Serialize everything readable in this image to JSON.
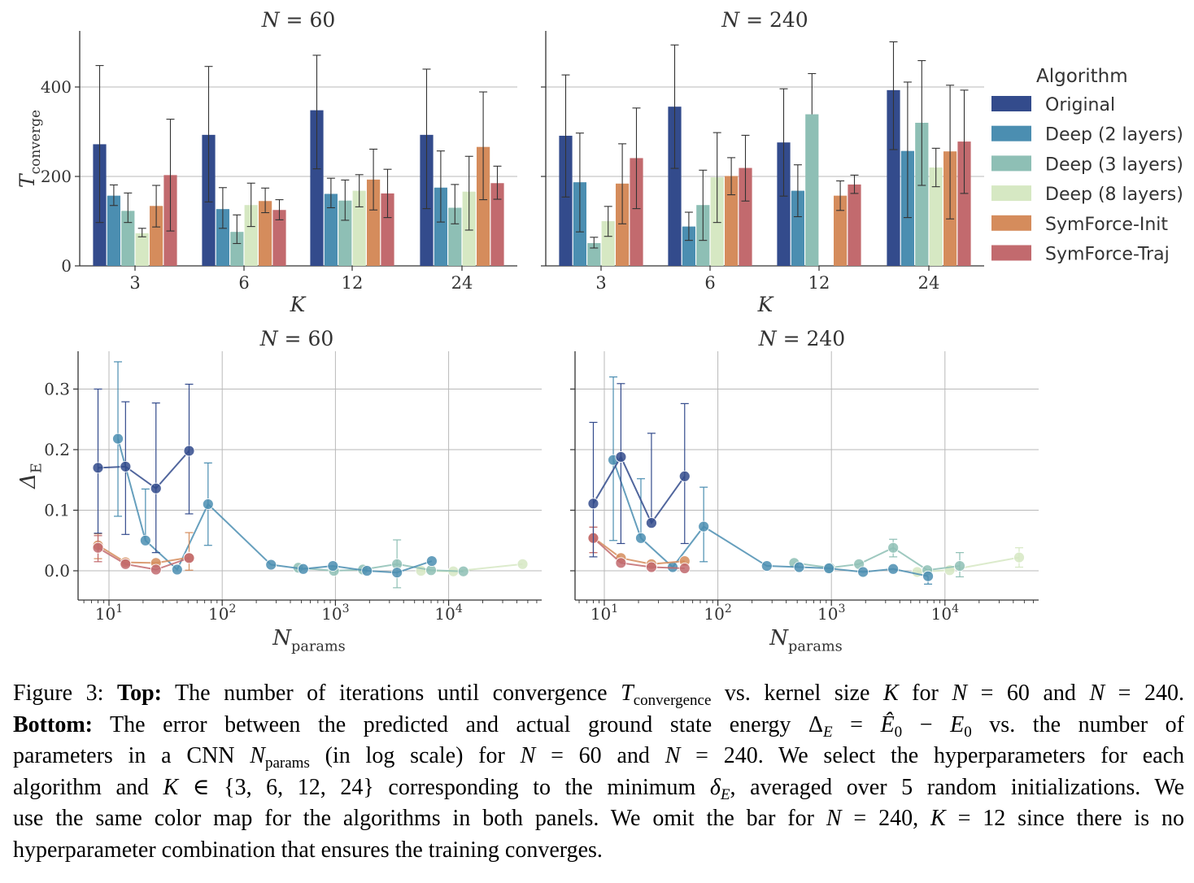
{
  "legend": {
    "title": "Algorithm",
    "items": [
      {
        "label": "Original",
        "color": "#334b8c"
      },
      {
        "label": "Deep (2 layers)",
        "color": "#4b8eb1"
      },
      {
        "label": "Deep (3 layers)",
        "color": "#8ebfb5"
      },
      {
        "label": "Deep (8 layers)",
        "color": "#d6e8c3"
      },
      {
        "label": "SymForce-Init",
        "color": "#d58c5c"
      },
      {
        "label": "SymForce-Traj",
        "color": "#c26a6e"
      }
    ]
  },
  "chart_data": [
    {
      "type": "bar",
      "title": "N = 60",
      "xlabel": "K",
      "ylabel": "T_converge",
      "categories": [
        "3",
        "6",
        "12",
        "24"
      ],
      "ylim": [
        0,
        530
      ],
      "yticks": [
        "0",
        "200",
        "400"
      ],
      "series": [
        {
          "name": "Original",
          "values": [
            272,
            293,
            348,
            293
          ],
          "err_low": [
            97,
            143,
            217,
            128
          ],
          "err_high": [
            448,
            446,
            471,
            440
          ]
        },
        {
          "name": "Deep (2 layers)",
          "values": [
            157,
            127,
            161,
            175
          ],
          "err_low": [
            135,
            84,
            130,
            98
          ],
          "err_high": [
            181,
            175,
            196,
            257
          ]
        },
        {
          "name": "Deep (3 layers)",
          "values": [
            123,
            76,
            146,
            130
          ],
          "err_low": [
            97,
            50,
            102,
            94
          ],
          "err_high": [
            163,
            114,
            192,
            182
          ]
        },
        {
          "name": "Deep (8 layers)",
          "values": [
            73,
            136,
            168,
            166
          ],
          "err_low": [
            65,
            88,
            132,
            80
          ],
          "err_high": [
            84,
            185,
            204,
            245
          ]
        },
        {
          "name": "SymForce-Init",
          "values": [
            134,
            145,
            193,
            266
          ],
          "err_low": [
            87,
            119,
            125,
            148
          ],
          "err_high": [
            180,
            174,
            261,
            389
          ]
        },
        {
          "name": "SymForce-Traj",
          "values": [
            203,
            125,
            162,
            185
          ],
          "err_low": [
            78,
            103,
            108,
            149
          ],
          "err_high": [
            328,
            148,
            216,
            223
          ]
        }
      ]
    },
    {
      "type": "bar",
      "title": "N = 240",
      "xlabel": "K",
      "ylabel": "",
      "categories": [
        "3",
        "6",
        "12",
        "24"
      ],
      "ylim": [
        0,
        530
      ],
      "series": [
        {
          "name": "Original",
          "values": [
            291,
            356,
            276,
            393
          ],
          "err_low": [
            154,
            218,
            156,
            260
          ],
          "err_high": [
            427,
            494,
            396,
            501
          ]
        },
        {
          "name": "Deep (2 layers)",
          "values": [
            187,
            88,
            168,
            257
          ],
          "err_low": [
            76,
            57,
            110,
            108
          ],
          "err_high": [
            297,
            120,
            226,
            411
          ]
        },
        {
          "name": "Deep (3 layers)",
          "values": [
            51,
            136,
            339,
            320
          ],
          "err_low": [
            40,
            57,
            null,
            180
          ],
          "err_high": [
            64,
            214,
            430,
            459
          ]
        },
        {
          "name": "Deep (8 layers)",
          "values": [
            100,
            198,
            null,
            220
          ],
          "err_low": [
            66,
            97,
            null,
            177
          ],
          "err_high": [
            133,
            298,
            null,
            263
          ]
        },
        {
          "name": "SymForce-Init",
          "values": [
            184,
            201,
            157,
            256
          ],
          "err_low": [
            94,
            159,
            124,
            105
          ],
          "err_high": [
            273,
            242,
            190,
            404
          ]
        },
        {
          "name": "SymForce-Traj",
          "values": [
            241,
            219,
            182,
            278
          ],
          "err_low": [
            128,
            145,
            162,
            162
          ],
          "err_high": [
            353,
            292,
            203,
            393
          ]
        }
      ]
    },
    {
      "type": "line",
      "title": "N = 60",
      "xlabel": "N_params",
      "ylabel": "Δ_E",
      "xscale": "log",
      "xlim": [
        5,
        65000
      ],
      "ylim": [
        -0.047,
        0.365
      ],
      "xticks": [
        "10^1",
        "10^2",
        "10^3",
        "10^4"
      ],
      "yticks": [
        "0.0",
        "0.1",
        "0.2",
        "0.3"
      ],
      "series": [
        {
          "name": "Original",
          "x": [
            8,
            14,
            26,
            51
          ],
          "y": [
            0.17,
            0.172,
            0.136,
            0.198
          ],
          "err_low": [
            0.062,
            0.06,
            0.03,
            0.094
          ],
          "err_high": [
            0.3,
            0.279,
            0.277,
            0.308
          ]
        },
        {
          "name": "Deep (2 layers)",
          "x": [
            12,
            21,
            40,
            75,
            270,
            520,
            950,
            1900,
            3500,
            7100
          ],
          "y": [
            0.218,
            0.05,
            0.002,
            0.11,
            0.01,
            0.003,
            0.008,
            0.0,
            -0.003,
            0.016
          ],
          "err_low": [
            0.09,
            null,
            null,
            0.042,
            null,
            null,
            null,
            null,
            null,
            null
          ],
          "err_high": [
            0.345,
            0.135,
            null,
            0.178,
            null,
            null,
            null,
            null,
            null,
            null
          ]
        },
        {
          "name": "Deep (3 layers)",
          "x": [
            470,
            970,
            1750,
            3500,
            7000,
            13500
          ],
          "y": [
            0.005,
            0.0,
            0.002,
            0.011,
            0.001,
            -0.001
          ],
          "err_low": [
            null,
            null,
            null,
            -0.028,
            null,
            null
          ],
          "err_high": [
            null,
            null,
            null,
            0.051,
            null,
            null
          ]
        },
        {
          "name": "Deep (8 layers)",
          "x": [
            5700,
            11000,
            45000
          ],
          "y": [
            0.0,
            -0.001,
            0.011
          ],
          "err_low": [
            null,
            null,
            null
          ],
          "err_high": [
            null,
            null,
            null
          ]
        },
        {
          "name": "SymForce-Init",
          "x": [
            8,
            14,
            26,
            51
          ],
          "y": [
            0.042,
            0.014,
            0.013,
            0.022
          ],
          "err_low": [
            0.02,
            null,
            null,
            0.001
          ],
          "err_high": [
            0.061,
            null,
            null,
            0.063
          ]
        },
        {
          "name": "SymForce-Traj",
          "x": [
            8,
            14,
            26,
            51
          ],
          "y": [
            0.038,
            0.011,
            0.002,
            0.021
          ],
          "err_low": [
            0.015,
            null,
            null,
            null
          ],
          "err_high": [
            0.058,
            null,
            null,
            null
          ]
        }
      ]
    },
    {
      "type": "line",
      "title": "N = 240",
      "xlabel": "N_params",
      "ylabel": "",
      "xscale": "log",
      "xlim": [
        5,
        65000
      ],
      "ylim": [
        -0.047,
        0.365
      ],
      "xticks": [
        "10^1",
        "10^2",
        "10^3",
        "10^4"
      ],
      "series": [
        {
          "name": "Original",
          "x": [
            8,
            14,
            26,
            51
          ],
          "y": [
            0.111,
            0.188,
            0.079,
            0.156
          ],
          "err_low": [
            0.023,
            0.045,
            null,
            0.045
          ],
          "err_high": [
            0.245,
            0.309,
            0.227,
            0.276
          ]
        },
        {
          "name": "Deep (2 layers)",
          "x": [
            12,
            21,
            40,
            75,
            270,
            520,
            950,
            1900,
            3500,
            7100
          ],
          "y": [
            0.183,
            0.054,
            0.006,
            0.073,
            0.008,
            0.006,
            0.004,
            -0.002,
            0.003,
            -0.009
          ],
          "err_low": [
            0.05,
            null,
            null,
            0.015,
            null,
            null,
            null,
            null,
            null,
            -0.022
          ],
          "err_high": [
            0.32,
            0.152,
            null,
            0.138,
            null,
            null,
            null,
            null,
            null,
            null
          ]
        },
        {
          "name": "Deep (3 layers)",
          "x": [
            470,
            970,
            1750,
            3500,
            7000,
            13500
          ],
          "y": [
            0.013,
            0.005,
            0.011,
            0.038,
            0.001,
            0.008
          ],
          "err_low": [
            null,
            null,
            null,
            0.023,
            null,
            -0.01
          ],
          "err_high": [
            null,
            null,
            null,
            0.052,
            null,
            0.03
          ]
        },
        {
          "name": "Deep (8 layers)",
          "x": [
            5700,
            11000,
            45000
          ],
          "y": [
            -0.002,
            0.001,
            0.022
          ],
          "err_low": [
            null,
            null,
            0.006
          ],
          "err_high": [
            null,
            null,
            0.038
          ]
        },
        {
          "name": "SymForce-Init",
          "x": [
            8,
            14,
            26,
            51
          ],
          "y": [
            0.055,
            0.021,
            0.011,
            0.016
          ],
          "err_low": [
            0.03,
            null,
            null,
            null
          ],
          "err_high": [
            0.072,
            null,
            null,
            null
          ]
        },
        {
          "name": "SymForce-Traj",
          "x": [
            8,
            14,
            26,
            51
          ],
          "y": [
            0.054,
            0.013,
            0.006,
            0.004
          ],
          "err_low": [
            0.03,
            null,
            null,
            null
          ],
          "err_high": [
            0.072,
            null,
            null,
            null
          ]
        }
      ]
    }
  ],
  "caption": {
    "fig_label": "Figure 3:",
    "top_label": "Top:",
    "top_text": "The number of iterations until convergence T_convergence vs. kernel size K for N = 60 and N = 240.",
    "bottom_label": "Bottom:",
    "bottom_text": "The error between the predicted and actual ground state energy Δ_E = Ê_0 − E_0 vs. the number of parameters in a CNN N_params (in log scale) for N = 60 and N = 240. We select the hyperparameters for each algorithm and K ∈ {3, 6, 12, 24} corresponding to the minimum δ_E, averaged over 5 random initializations. We use the same color map for the algorithms in both panels. We omit the bar for N = 240, K = 12 since there is no hyperparameter combination that ensures the training converges."
  }
}
